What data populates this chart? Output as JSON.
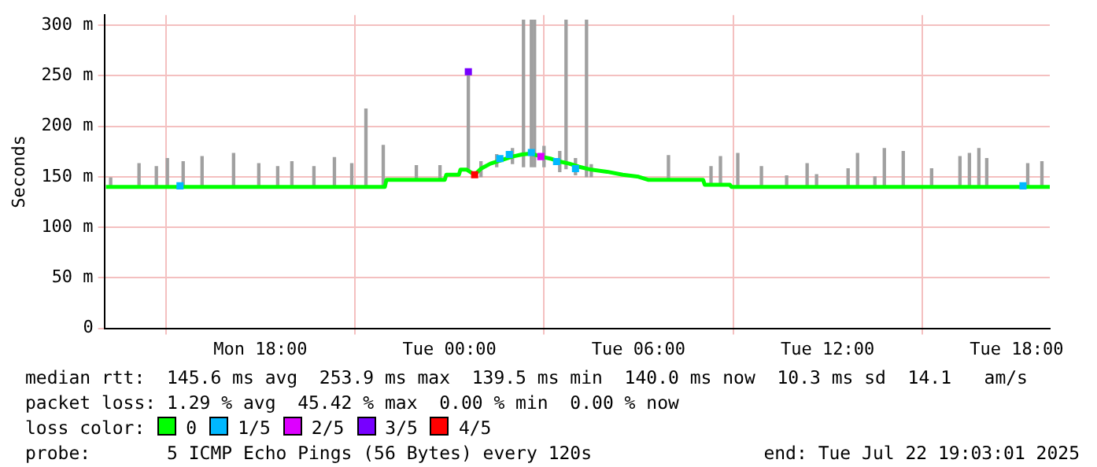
{
  "chart_data": {
    "type": "line",
    "ylabel": "Seconds",
    "xlim": [
      "2025-07-21T13:03",
      "2025-07-22T19:03"
    ],
    "xticks": [
      {
        "value": "2025-07-21T18:00",
        "label": "Mon 18:00"
      },
      {
        "value": "2025-07-22T00:00",
        "label": "Tue 00:00"
      },
      {
        "value": "2025-07-22T06:00",
        "label": "Tue 06:00"
      },
      {
        "value": "2025-07-22T12:00",
        "label": "Tue 12:00"
      },
      {
        "value": "2025-07-22T18:00",
        "label": "Tue 18:00"
      }
    ],
    "ylim": [
      0,
      310
    ],
    "yticks": [
      {
        "value": 0,
        "label": "0"
      },
      {
        "value": 50,
        "label": "50 m"
      },
      {
        "value": 100,
        "label": "100 m"
      },
      {
        "value": 150,
        "label": "150 m"
      },
      {
        "value": 200,
        "label": "200 m"
      },
      {
        "value": 250,
        "label": "250 m"
      },
      {
        "value": 300,
        "label": "300 m"
      }
    ],
    "grid": true,
    "legend": "bottom",
    "legend_title": "loss color:",
    "series": [
      {
        "type": "bar",
        "color": "#a0a0a0",
        "x": [
          "2025-07-21T13:15",
          "2025-07-21T14:09",
          "2025-07-21T14:42",
          "2025-07-21T15:03",
          "2025-07-21T15:33",
          "2025-07-21T16:09",
          "2025-07-21T17:09",
          "2025-07-21T17:57",
          "2025-07-21T18:33",
          "2025-07-21T19:00",
          "2025-07-21T19:42",
          "2025-07-21T20:21",
          "2025-07-21T20:54",
          "2025-07-21T21:21",
          "2025-07-21T21:54",
          "2025-07-21T22:57",
          "2025-07-21T23:42",
          "2025-07-22T00:36",
          "2025-07-22T01:00",
          "2025-07-22T01:30",
          "2025-07-22T02:00",
          "2025-07-22T02:21",
          "2025-07-22T02:36",
          "2025-07-22T02:42",
          "2025-07-22T03:00",
          "2025-07-22T03:30",
          "2025-07-22T03:42",
          "2025-07-22T04:00",
          "2025-07-22T04:21",
          "2025-07-22T04:30",
          "2025-07-22T06:57",
          "2025-07-22T08:18",
          "2025-07-22T08:36",
          "2025-07-22T09:09",
          "2025-07-22T09:54",
          "2025-07-22T10:42",
          "2025-07-22T11:21",
          "2025-07-22T11:39",
          "2025-07-22T12:39",
          "2025-07-22T12:57",
          "2025-07-22T13:30",
          "2025-07-22T13:48",
          "2025-07-22T14:24",
          "2025-07-22T15:18",
          "2025-07-22T16:12",
          "2025-07-22T16:30",
          "2025-07-22T16:48",
          "2025-07-22T17:03",
          "2025-07-22T18:21",
          "2025-07-22T18:48"
        ],
        "base": [
          140,
          140,
          140,
          140,
          140,
          140,
          140,
          140,
          140,
          140,
          140,
          140,
          140,
          140,
          140,
          147,
          147,
          157,
          150,
          160,
          163,
          160,
          160,
          160,
          160,
          155,
          158,
          152,
          150,
          150,
          147,
          142,
          142,
          140,
          140,
          140,
          140,
          140,
          140,
          140,
          140,
          140,
          140,
          140,
          140,
          140,
          140,
          140,
          140,
          140
        ],
        "values": [
          9,
          23,
          20,
          28,
          25,
          30,
          33,
          23,
          20,
          25,
          20,
          29,
          23,
          77,
          41,
          14,
          14,
          97,
          15,
          12,
          15,
          145,
          145,
          145,
          20,
          20,
          147,
          16,
          155,
          12,
          24,
          18,
          28,
          33,
          20,
          11,
          23,
          12,
          18,
          33,
          10,
          38,
          35,
          18,
          30,
          33,
          38,
          28,
          23,
          25
        ]
      },
      {
        "name": "0",
        "color": "#00ff00",
        "x": [
          "2025-07-21T13:06",
          "2025-07-21T21:57",
          "2025-07-21T22:00",
          "2025-07-21T23:51",
          "2025-07-21T23:54",
          "2025-07-22T00:18",
          "2025-07-22T00:21",
          "2025-07-22T00:33",
          "2025-07-22T00:48",
          "2025-07-22T01:00",
          "2025-07-22T01:18",
          "2025-07-22T01:36",
          "2025-07-22T02:00",
          "2025-07-22T02:18",
          "2025-07-22T02:36",
          "2025-07-22T02:54",
          "2025-07-22T03:12",
          "2025-07-22T03:30",
          "2025-07-22T03:48",
          "2025-07-22T04:06",
          "2025-07-22T04:30",
          "2025-07-22T05:00",
          "2025-07-22T05:30",
          "2025-07-22T06:00",
          "2025-07-22T06:18",
          "2025-07-22T08:03",
          "2025-07-22T08:06",
          "2025-07-22T08:54",
          "2025-07-22T08:57",
          "2025-07-22T19:03"
        ],
        "values": [
          140,
          140,
          147,
          147,
          152,
          152,
          157,
          157,
          152,
          158,
          163,
          166,
          170,
          172,
          173,
          170,
          168,
          165,
          163,
          160,
          157,
          155,
          152,
          150,
          147,
          147,
          142,
          142,
          140,
          140
        ]
      },
      {
        "name": "1/5",
        "type": "scatter",
        "color": "#00b8ff",
        "x": [
          "2025-07-21T15:27",
          "2025-07-22T01:36",
          "2025-07-22T01:54",
          "2025-07-22T02:36",
          "2025-07-22T03:24",
          "2025-07-22T04:00",
          "2025-07-22T18:12"
        ],
        "values": [
          141,
          168,
          172,
          174,
          165,
          158,
          141
        ]
      },
      {
        "name": "2/5",
        "type": "scatter",
        "color": "#dd00ff",
        "x": [
          "2025-07-22T02:54"
        ],
        "values": [
          170
        ]
      },
      {
        "name": "3/5",
        "type": "scatter",
        "color": "#7700ff",
        "x": [
          "2025-07-22T00:36"
        ],
        "values": [
          254
        ]
      },
      {
        "name": "4/5",
        "type": "scatter",
        "color": "#ff0000",
        "x": [
          "2025-07-22T00:48"
        ],
        "values": [
          152
        ]
      }
    ],
    "annotations": [
      "median rtt:  145.6 ms avg  253.9 ms max  139.5 ms min  140.0 ms now  10.3 ms sd  14.1   am/s",
      "packet loss: 1.29 % avg  45.42 % max  0.00 % min  0.00 % now",
      "probe:       5 ICMP Echo Pings (56 Bytes) every 120s",
      "end: Tue Jul 22 19:03:01 2025"
    ]
  }
}
